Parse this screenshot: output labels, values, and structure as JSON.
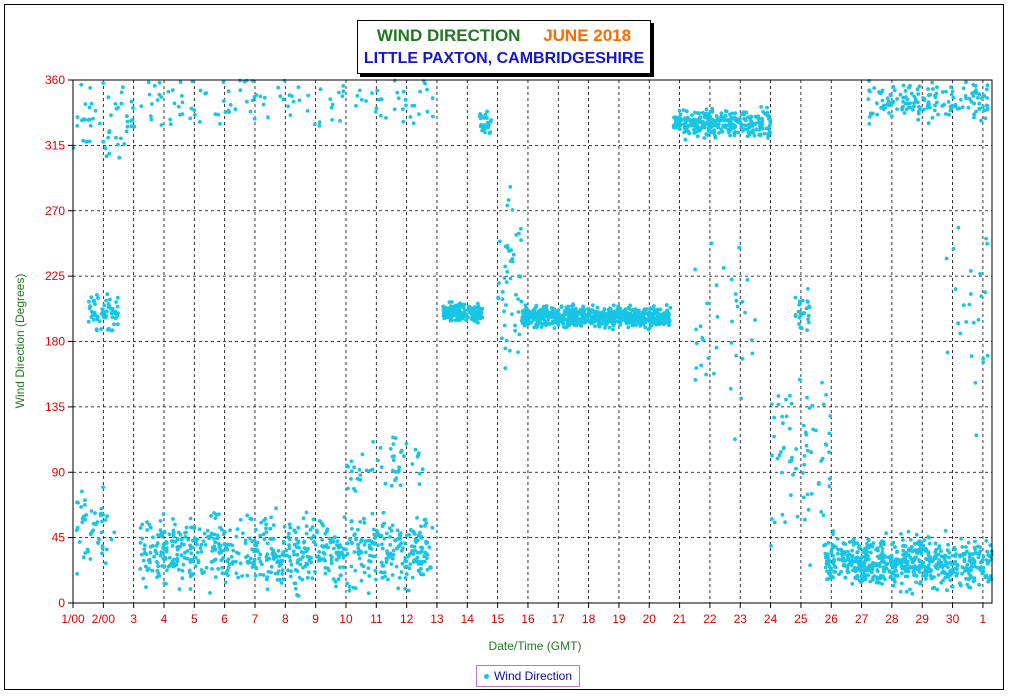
{
  "title": {
    "main": "WIND DIRECTION",
    "month": "JUNE 2018",
    "subtitle": "LITTLE PAXTON, CAMBRIDGESHIRE"
  },
  "colors": {
    "series": "#17c5e6",
    "axis_text": "#e00000",
    "ylabel": "#1f7a1f",
    "xlabel": "#1f7a1f",
    "title_main": "#1f7a1f",
    "title_month": "#ff6a00",
    "subtitle": "#1414d2"
  },
  "chart_data": {
    "type": "scatter",
    "xlabel": "Date/Time (GMT)",
    "ylabel": "Wind Direction (Degrees)",
    "xticks": [
      "1/00",
      "2/00",
      "3",
      "4",
      "5",
      "6",
      "7",
      "8",
      "9",
      "10",
      "11",
      "12",
      "13",
      "14",
      "15",
      "16",
      "17",
      "18",
      "19",
      "20",
      "21",
      "22",
      "23",
      "24",
      "25",
      "26",
      "27",
      "28",
      "29",
      "30",
      "1"
    ],
    "yticks": [
      0,
      45,
      90,
      135,
      180,
      225,
      270,
      315,
      360
    ],
    "xlim": [
      1,
      31.3
    ],
    "ylim": [
      0,
      360
    ],
    "grid": true,
    "legend_position": "bottom",
    "series": [
      {
        "name": "Wind Direction",
        "clusters": [
          {
            "day_start": 1.0,
            "day_end": 2.4,
            "value": 50,
            "spread": 40,
            "points_per_day": 35
          },
          {
            "day_start": 1.5,
            "day_end": 2.5,
            "value": 200,
            "spread": 18,
            "points_per_day": 60
          },
          {
            "day_start": 1.0,
            "day_end": 3.0,
            "value": 330,
            "spread": 40,
            "points_per_day": 25
          },
          {
            "day_start": 3.2,
            "day_end": 12.9,
            "value": 35,
            "spread": 35,
            "points_per_day": 70
          },
          {
            "day_start": 3.0,
            "day_end": 12.9,
            "value": 345,
            "spread": 30,
            "points_per_day": 12
          },
          {
            "day_start": 10.0,
            "day_end": 12.6,
            "value": 95,
            "spread": 25,
            "points_per_day": 20
          },
          {
            "day_start": 13.2,
            "day_end": 14.5,
            "value": 200,
            "spread": 10,
            "points_per_day": 120
          },
          {
            "day_start": 14.4,
            "day_end": 14.8,
            "value": 330,
            "spread": 15,
            "points_per_day": 60
          },
          {
            "day_start": 15.0,
            "day_end": 15.8,
            "value": 220,
            "spread": 90,
            "points_per_day": 60
          },
          {
            "day_start": 15.8,
            "day_end": 20.7,
            "value": 197,
            "spread": 10,
            "points_per_day": 150
          },
          {
            "day_start": 20.8,
            "day_end": 24.0,
            "value": 330,
            "spread": 14,
            "points_per_day": 90
          },
          {
            "day_start": 21.5,
            "day_end": 23.5,
            "value": 190,
            "spread": 90,
            "points_per_day": 18
          },
          {
            "day_start": 24.0,
            "day_end": 26.0,
            "value": 100,
            "spread": 95,
            "points_per_day": 35
          },
          {
            "day_start": 24.8,
            "day_end": 25.3,
            "value": 200,
            "spread": 20,
            "points_per_day": 50
          },
          {
            "day_start": 25.8,
            "day_end": 31.3,
            "value": 28,
            "spread": 25,
            "points_per_day": 110
          },
          {
            "day_start": 27.2,
            "day_end": 31.2,
            "value": 345,
            "spread": 18,
            "points_per_day": 40
          },
          {
            "day_start": 29.8,
            "day_end": 31.2,
            "value": 200,
            "spread": 90,
            "points_per_day": 18
          }
        ]
      }
    ]
  }
}
